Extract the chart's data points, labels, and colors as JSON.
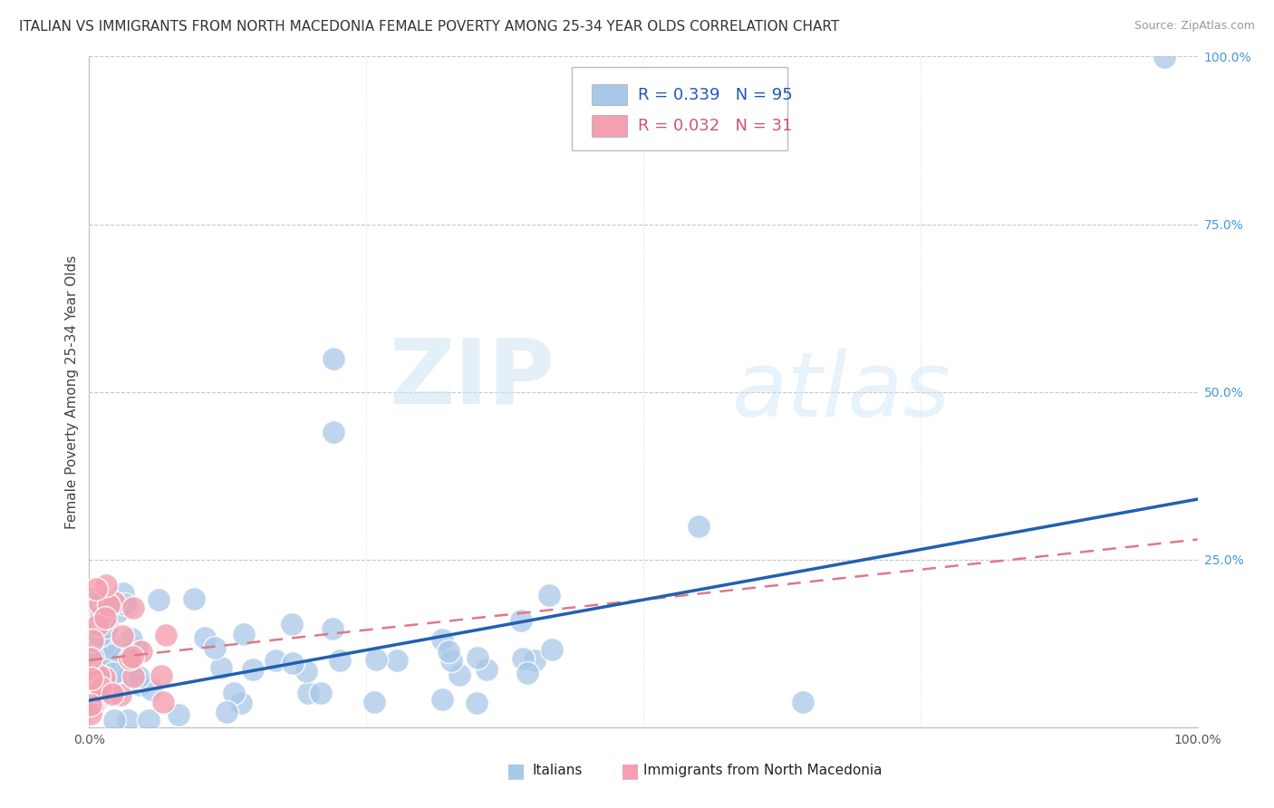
{
  "title": "ITALIAN VS IMMIGRANTS FROM NORTH MACEDONIA FEMALE POVERTY AMONG 25-34 YEAR OLDS CORRELATION CHART",
  "source": "Source: ZipAtlas.com",
  "ylabel": "Female Poverty Among 25-34 Year Olds",
  "xlim": [
    0,
    1.0
  ],
  "ylim": [
    0,
    1.0
  ],
  "ytick_labels_right": [
    "100.0%",
    "75.0%",
    "50.0%",
    "25.0%"
  ],
  "ytick_values_right": [
    1.0,
    0.75,
    0.5,
    0.25
  ],
  "watermark_zip": "ZIP",
  "watermark_atlas": "atlas",
  "legend_r1": "R = 0.339",
  "legend_n1": "N = 95",
  "legend_r2": "R = 0.032",
  "legend_n2": "N = 31",
  "italian_color": "#a8c8e8",
  "macedonian_color": "#f4a0b0",
  "italian_line_color": "#2060b0",
  "macedonian_line_color": "#e07888",
  "background_color": "#ffffff",
  "grid_color": "#c8c8c8",
  "title_fontsize": 11,
  "axis_label_fontsize": 11,
  "tick_fontsize": 10,
  "legend_fontsize": 13
}
